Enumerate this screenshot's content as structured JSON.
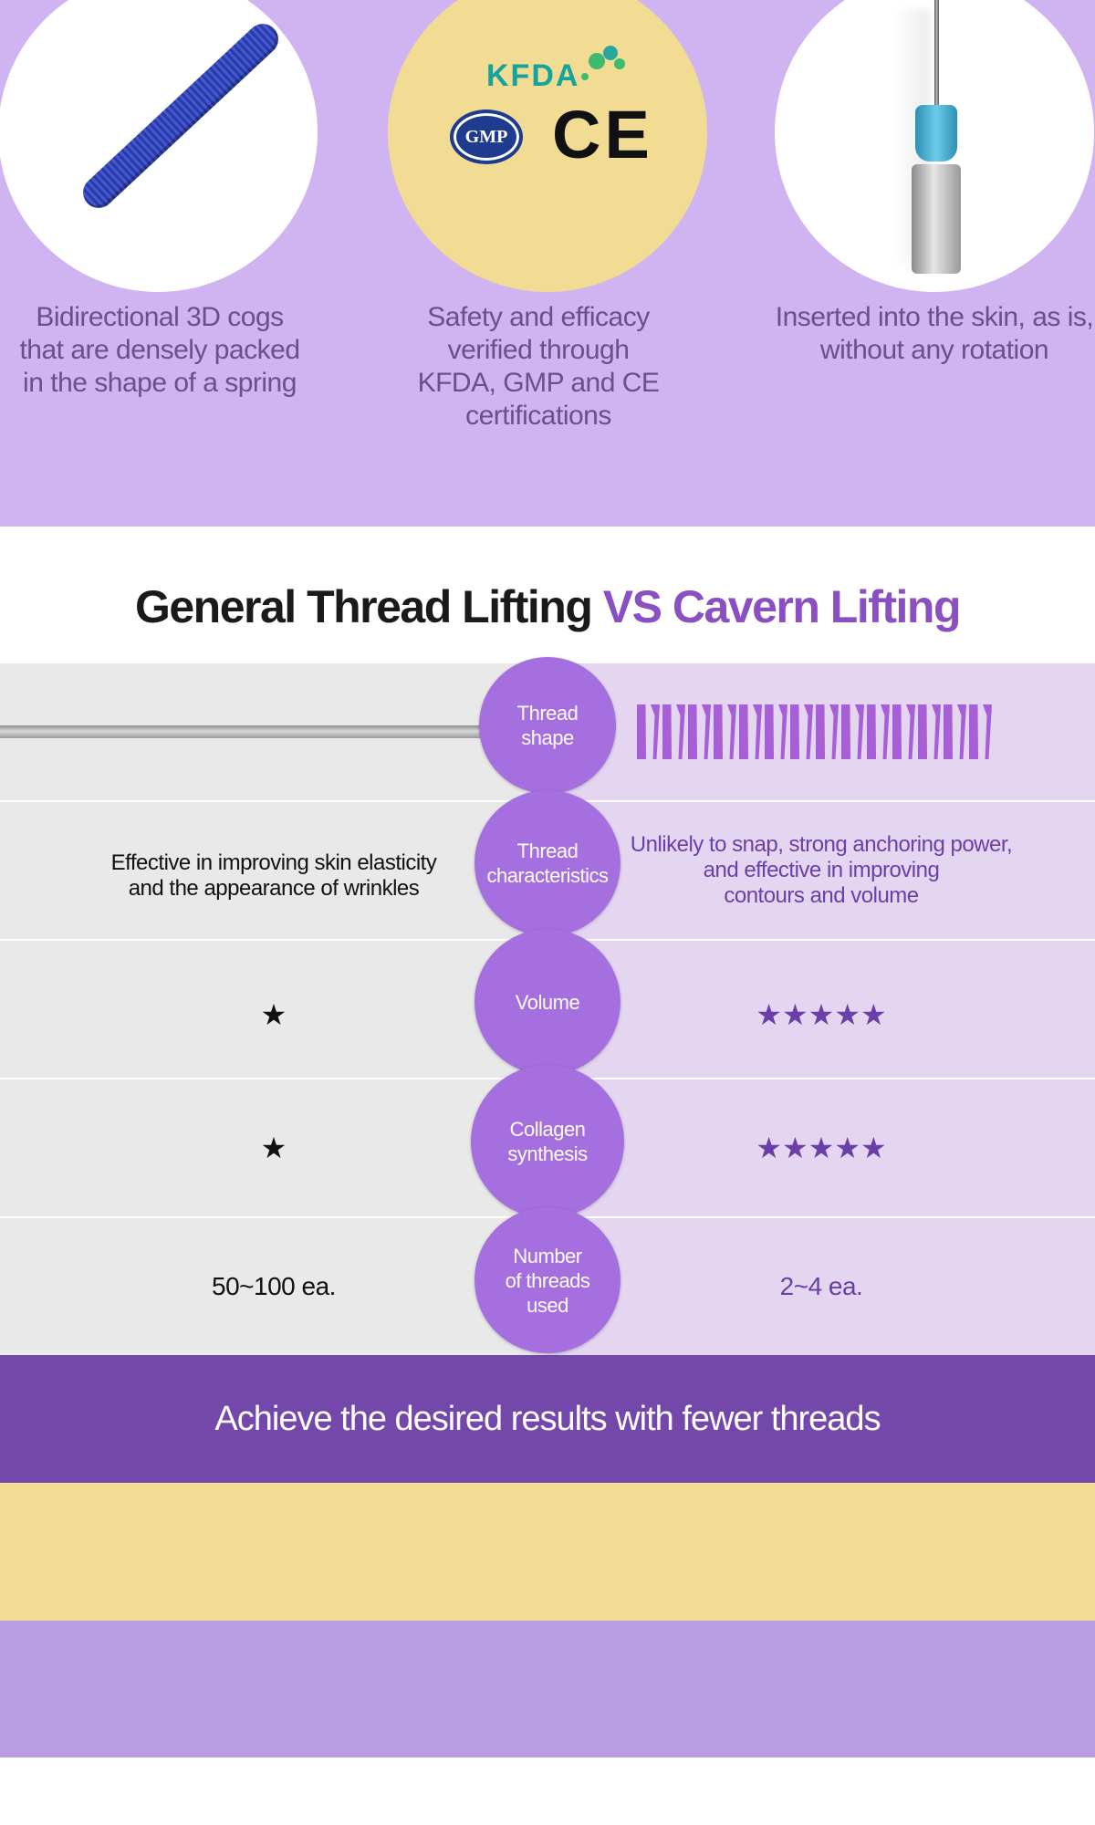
{
  "features": [
    {
      "caption": "Bidirectional 3D cogs\nthat are densely packed\nin the shape of a spring",
      "image": "spring-thread"
    },
    {
      "caption": "Safety and efficacy\nverified through\nKFDA, GMP and CE\ncertifications",
      "image": "certification-logos",
      "logos": {
        "kfda": "KFDA",
        "gmp": "GMP",
        "ce": "CE"
      }
    },
    {
      "caption": "Inserted into the skin, as is,\nwithout any rotation",
      "image": "cannula-needle"
    }
  ],
  "comparison": {
    "title_part1": "General Thread Lifting ",
    "title_part2": "VS Cavern Lifting",
    "rows": [
      {
        "label": "Thread\nshape",
        "general": "",
        "cavern": ""
      },
      {
        "label": "Thread\ncharacteristics",
        "general": "Effective in improving skin elasticity\nand the appearance of wrinkles",
        "cavern": "Unlikely to snap, strong anchoring power,\nand effective in improving\ncontours and volume"
      },
      {
        "label": "Volume",
        "general": "★",
        "cavern": "★★★★★",
        "general_rating": 1,
        "cavern_rating": 5
      },
      {
        "label": "Collagen\nsynthesis",
        "general": "★",
        "cavern": "★★★★★",
        "general_rating": 1,
        "cavern_rating": 5
      },
      {
        "label": "Number\nof threads\nused",
        "general": "50~100 ea.",
        "cavern": "2~4 ea."
      }
    ]
  },
  "banner": {
    "text": "Achieve the desired results with fewer threads"
  },
  "colors": {
    "lavender": "#cfb4f1",
    "yellow": "#f2dc94",
    "purple_dark": "#7447aa",
    "purple_accent": "#8a4fc0",
    "badge": "#a56fdf"
  }
}
